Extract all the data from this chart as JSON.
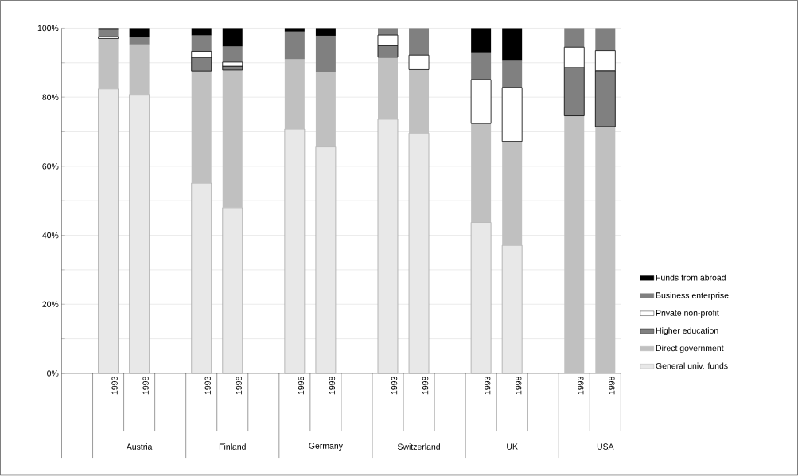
{
  "chart_data": {
    "type": "bar",
    "stacked": true,
    "categories": [
      null,
      "1993",
      "1998",
      null,
      "1993",
      "1998",
      null,
      "1995",
      "1998",
      null,
      "1993",
      "1998",
      null,
      "1993",
      "1998",
      null,
      "1993",
      "1998"
    ],
    "series": [
      {
        "name": "General univ. funds",
        "color": "#e8e8e8",
        "values": [
          null,
          82.4,
          80.8,
          null,
          55.1,
          48.0,
          null,
          70.8,
          65.6,
          null,
          73.6,
          69.6,
          null,
          43.7,
          37.1,
          null,
          null,
          null
        ]
      },
      {
        "name": "Direct government",
        "color": "#c0c0c0",
        "values": [
          null,
          14.6,
          14.5,
          null,
          32.5,
          39.9,
          null,
          20.2,
          21.7,
          null,
          18.0,
          18.4,
          null,
          28.7,
          30.1,
          null,
          74.6,
          71.5
        ]
      },
      {
        "name": "Higher education",
        "color": "#808080",
        "values": [
          null,
          null,
          null,
          null,
          4.0,
          1.1,
          null,
          null,
          null,
          null,
          3.4,
          null,
          null,
          null,
          null,
          null,
          14.0,
          16.2
        ]
      },
      {
        "name": "Private non-profit",
        "color": "#ffffff",
        "values": [
          null,
          0.5,
          null,
          null,
          1.7,
          1.2,
          null,
          null,
          null,
          null,
          3.0,
          4.2,
          null,
          12.7,
          15.6,
          null,
          5.9,
          5.8
        ]
      },
      {
        "name": "Business enterprise",
        "color": "#808080",
        "values": [
          null,
          2.0,
          2.0,
          null,
          4.6,
          4.5,
          null,
          8.0,
          10.5,
          null,
          2.0,
          7.8,
          null,
          7.9,
          7.7,
          null,
          5.5,
          6.5
        ]
      },
      {
        "name": "Funds from abroad",
        "color": "#000000",
        "values": [
          null,
          0.5,
          2.7,
          null,
          2.1,
          5.3,
          null,
          1.0,
          2.2,
          null,
          null,
          null,
          null,
          7.0,
          9.5,
          null,
          null,
          null
        ]
      }
    ],
    "annotations": [
      "Austria",
      "Finland",
      "Germany",
      "Switzerland",
      "UK",
      "USA"
    ],
    "ylim": [
      0,
      100
    ],
    "yticks": [
      {
        "value": 0,
        "label": "0%"
      },
      {
        "value": 10,
        "label": null
      },
      {
        "value": 20,
        "label": "20%"
      },
      {
        "value": 30,
        "label": null
      },
      {
        "value": 40,
        "label": "40%"
      },
      {
        "value": 50,
        "label": null
      },
      {
        "value": 60,
        "label": "60%"
      },
      {
        "value": 70,
        "label": null
      },
      {
        "value": 80,
        "label": "80%"
      },
      {
        "value": 90,
        "label": null
      },
      {
        "value": 100,
        "label": "100%"
      }
    ],
    "grid": "y",
    "legend": "right"
  }
}
